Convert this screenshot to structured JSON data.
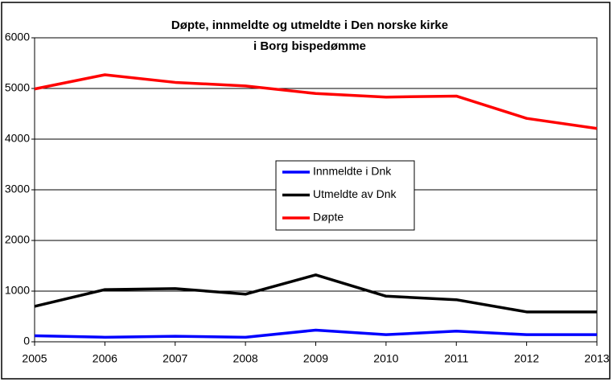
{
  "chart_data": {
    "type": "line",
    "title": [
      "Døpte, innmeldte og utmeldte i Den norske kirke",
      "i Borg bispedømme"
    ],
    "categories": [
      "2005",
      "2006",
      "2007",
      "2008",
      "2009",
      "2010",
      "2011",
      "2012",
      "2013"
    ],
    "series": [
      {
        "name": "Innmeldte i Dnk",
        "color": "#0000ff",
        "values": [
          120,
          90,
          110,
          90,
          230,
          140,
          210,
          140,
          140
        ]
      },
      {
        "name": "Utmeldte av Dnk",
        "color": "#000000",
        "values": [
          700,
          1030,
          1050,
          940,
          1320,
          900,
          830,
          590,
          590
        ]
      },
      {
        "name": "Døpte",
        "color": "#ff0000",
        "values": [
          4990,
          5270,
          5120,
          5050,
          4900,
          4830,
          4850,
          4410,
          4210
        ]
      }
    ],
    "ylim": [
      0,
      6000
    ],
    "yticks": [
      0,
      1000,
      2000,
      3000,
      4000,
      5000,
      6000
    ],
    "grid": true,
    "legend": "center"
  }
}
